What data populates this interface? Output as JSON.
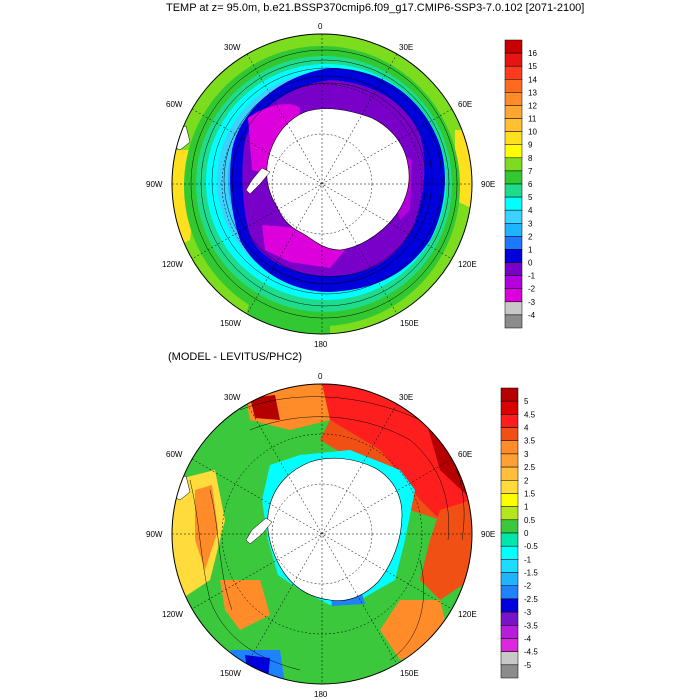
{
  "top": {
    "title": "TEMP at z=  95.0m, b.e21.BSSP370cmip6.f09_g17.CMIP6-SSP3-7.0.102 [2071-2100]",
    "lon_labels": [
      "0",
      "30E",
      "60E",
      "90E",
      "120E",
      "150E",
      "180",
      "150W",
      "120W",
      "90W",
      "60W",
      "30W"
    ],
    "colorbar": {
      "labels": [
        "16",
        "15",
        "14",
        "13",
        "12",
        "11",
        "10",
        "9",
        "8",
        "7",
        "6",
        "5",
        "4",
        "3",
        "2",
        "1",
        "0",
        "-1",
        "-2",
        "-3",
        "-4"
      ],
      "colors": [
        "#c80000",
        "#e61414",
        "#ff3a1e",
        "#ff6a1e",
        "#ff8c28",
        "#ffa532",
        "#ffc032",
        "#ffe01e",
        "#ffff00",
        "#7cdc1e",
        "#32c832",
        "#1edc8c",
        "#00ffff",
        "#3cd2ff",
        "#1eb4ff",
        "#1e78ff",
        "#0000dc",
        "#7800c8",
        "#b400dc",
        "#dc00dc",
        "#c8c8c8",
        "#8c8c8c"
      ]
    }
  },
  "bottom": {
    "title": "(MODEL - LEVITUS/PHC2)",
    "lon_labels": [
      "0",
      "30E",
      "60E",
      "90E",
      "120E",
      "150E",
      "180",
      "150W",
      "120W",
      "90W",
      "60W",
      "30W"
    ],
    "colorbar": {
      "labels": [
        "5",
        "4.5",
        "4",
        "3.5",
        "3",
        "2.5",
        "2",
        "1.5",
        "1",
        "0.5",
        "0",
        "-0.5",
        "-1",
        "-1.5",
        "-2",
        "-2.5",
        "-3",
        "-3.5",
        "-4",
        "-4.5",
        "-5"
      ],
      "colors": [
        "#b40000",
        "#dc0000",
        "#ff1e1e",
        "#f05014",
        "#ff8c28",
        "#ffa032",
        "#ffbe3c",
        "#ffdc3c",
        "#ffff00",
        "#b4e61e",
        "#3cc83c",
        "#00e6aa",
        "#00ffff",
        "#1edcff",
        "#1eb4ff",
        "#1e82ff",
        "#0000dc",
        "#7814c8",
        "#b41edc",
        "#dc28dc",
        "#c8c8c8",
        "#8c8c8c"
      ]
    }
  }
}
